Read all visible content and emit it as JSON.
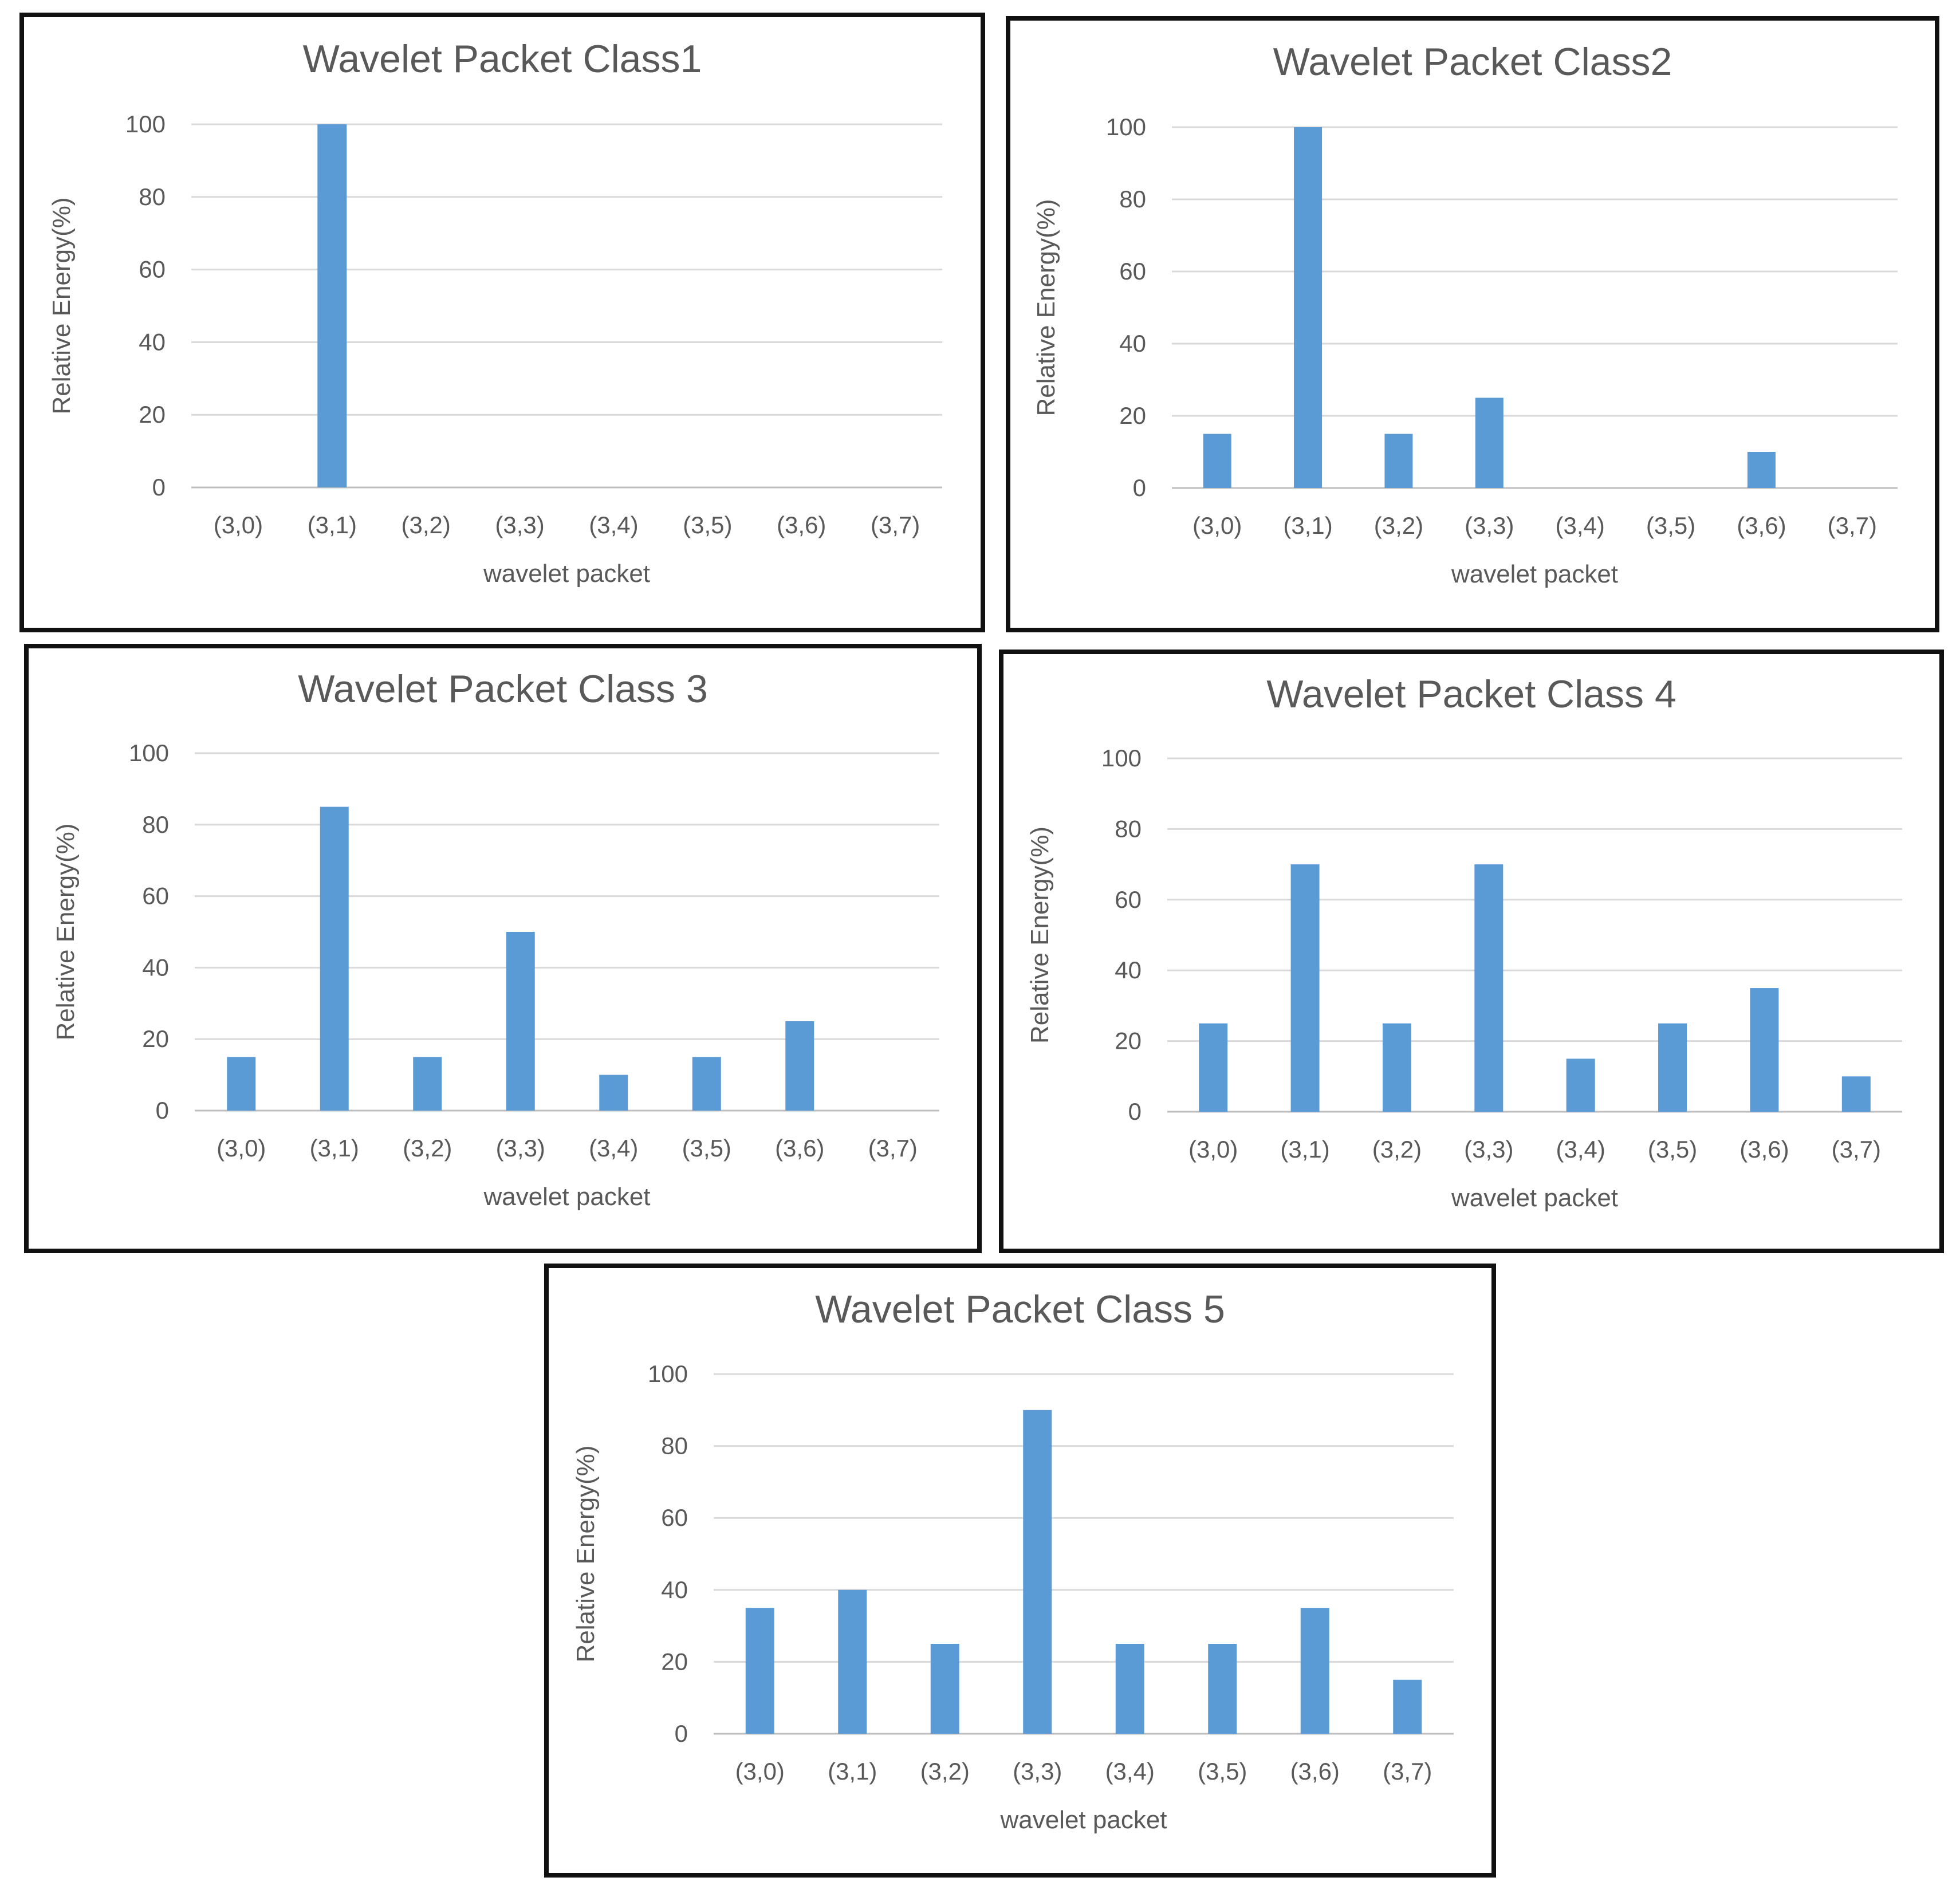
{
  "chart_data": [
    {
      "type": "bar",
      "title": "Wavelet Packet Class1",
      "xlabel": "wavelet packet",
      "ylabel": "Relative Energy(%)",
      "ylim": [
        0,
        100
      ],
      "yticks": [
        "0",
        "20",
        "40",
        "60",
        "80",
        "100"
      ],
      "categories": [
        "(3,0)",
        "(3,1)",
        "(3,2)",
        "(3,3)",
        "(3,4)",
        "(3,5)",
        "(3,6)",
        "(3,7)"
      ],
      "values": [
        0,
        100,
        0,
        0,
        0,
        0,
        0,
        0
      ],
      "grid": true,
      "bar_color": "#5b9bd5"
    },
    {
      "type": "bar",
      "title": "Wavelet Packet Class2",
      "xlabel": "wavelet packet",
      "ylabel": "Relative Energy(%)",
      "ylim": [
        0,
        100
      ],
      "yticks": [
        "0",
        "20",
        "40",
        "60",
        "80",
        "100"
      ],
      "categories": [
        "(3,0)",
        "(3,1)",
        "(3,2)",
        "(3,3)",
        "(3,4)",
        "(3,5)",
        "(3,6)",
        "(3,7)"
      ],
      "values": [
        15,
        100,
        15,
        25,
        0,
        0,
        10,
        0
      ],
      "grid": true,
      "bar_color": "#5b9bd5"
    },
    {
      "type": "bar",
      "title": "Wavelet Packet Class 3",
      "xlabel": "wavelet packet",
      "ylabel": "Relative Energy(%)",
      "ylim": [
        0,
        100
      ],
      "yticks": [
        "0",
        "20",
        "40",
        "60",
        "80",
        "100"
      ],
      "categories": [
        "(3,0)",
        "(3,1)",
        "(3,2)",
        "(3,3)",
        "(3,4)",
        "(3,5)",
        "(3,6)",
        "(3,7)"
      ],
      "values": [
        15,
        85,
        15,
        50,
        10,
        15,
        25,
        0
      ],
      "grid": true,
      "bar_color": "#5b9bd5"
    },
    {
      "type": "bar",
      "title": "Wavelet Packet Class 4",
      "xlabel": "wavelet packet",
      "ylabel": "Relative Energy(%)",
      "ylim": [
        0,
        100
      ],
      "yticks": [
        "0",
        "20",
        "40",
        "60",
        "80",
        "100"
      ],
      "categories": [
        "(3,0)",
        "(3,1)",
        "(3,2)",
        "(3,3)",
        "(3,4)",
        "(3,5)",
        "(3,6)",
        "(3,7)"
      ],
      "values": [
        25,
        70,
        25,
        70,
        15,
        25,
        35,
        10
      ],
      "grid": true,
      "bar_color": "#5b9bd5"
    },
    {
      "type": "bar",
      "title": "Wavelet Packet Class 5",
      "xlabel": "wavelet packet",
      "ylabel": "Relative Energy(%)",
      "ylim": [
        0,
        100
      ],
      "yticks": [
        "0",
        "20",
        "40",
        "60",
        "80",
        "100"
      ],
      "categories": [
        "(3,0)",
        "(3,1)",
        "(3,2)",
        "(3,3)",
        "(3,4)",
        "(3,5)",
        "(3,6)",
        "(3,7)"
      ],
      "values": [
        35,
        40,
        25,
        90,
        25,
        25,
        35,
        15
      ],
      "grid": true,
      "bar_color": "#5b9bd5"
    }
  ]
}
